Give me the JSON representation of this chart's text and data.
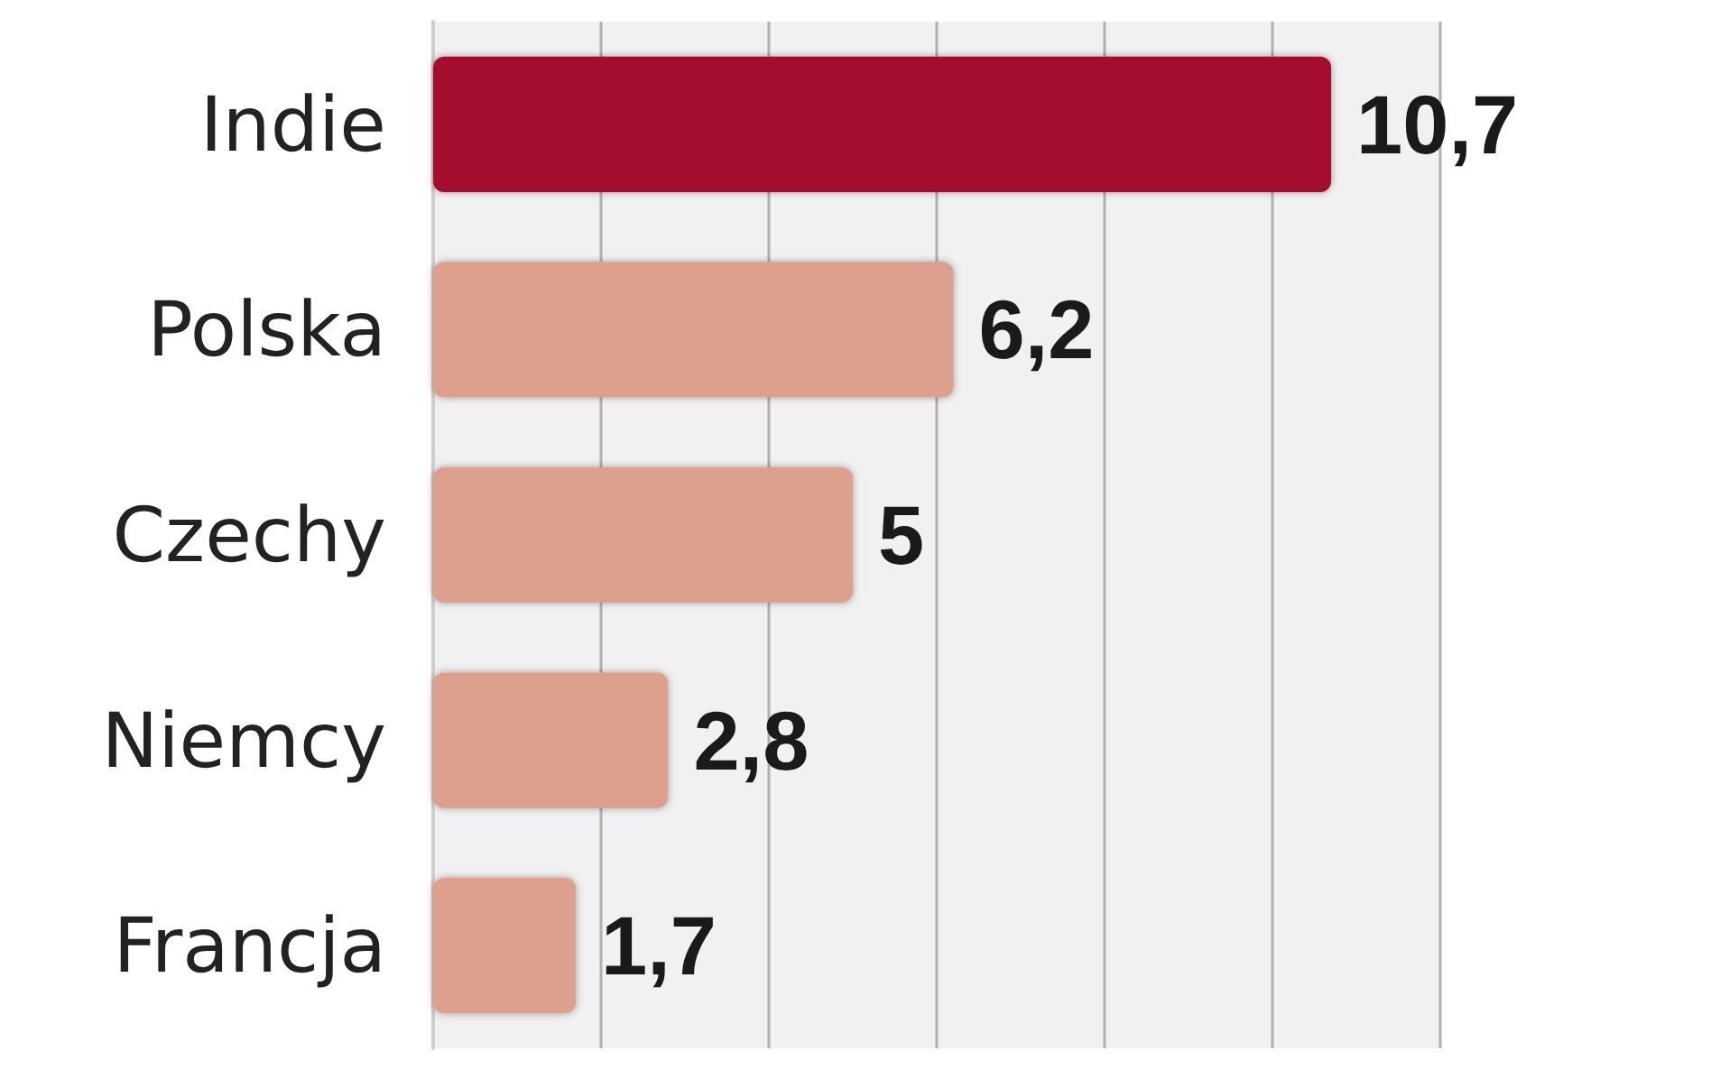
{
  "chart_data": {
    "type": "bar",
    "orientation": "horizontal",
    "categories": [
      "Indie",
      "Polska",
      "Czechy",
      "Niemcy",
      "Francja"
    ],
    "values": [
      10.7,
      6.2,
      5,
      2.8,
      1.7
    ],
    "colors": [
      "#a50f2d",
      "#dca08c",
      "#dca08c",
      "#dca08c",
      "#dca08c"
    ],
    "value_labels": [
      "10,7",
      "6,2",
      "5",
      "2,8",
      "1,7"
    ],
    "grid": "x",
    "tick_labels": "y"
  }
}
